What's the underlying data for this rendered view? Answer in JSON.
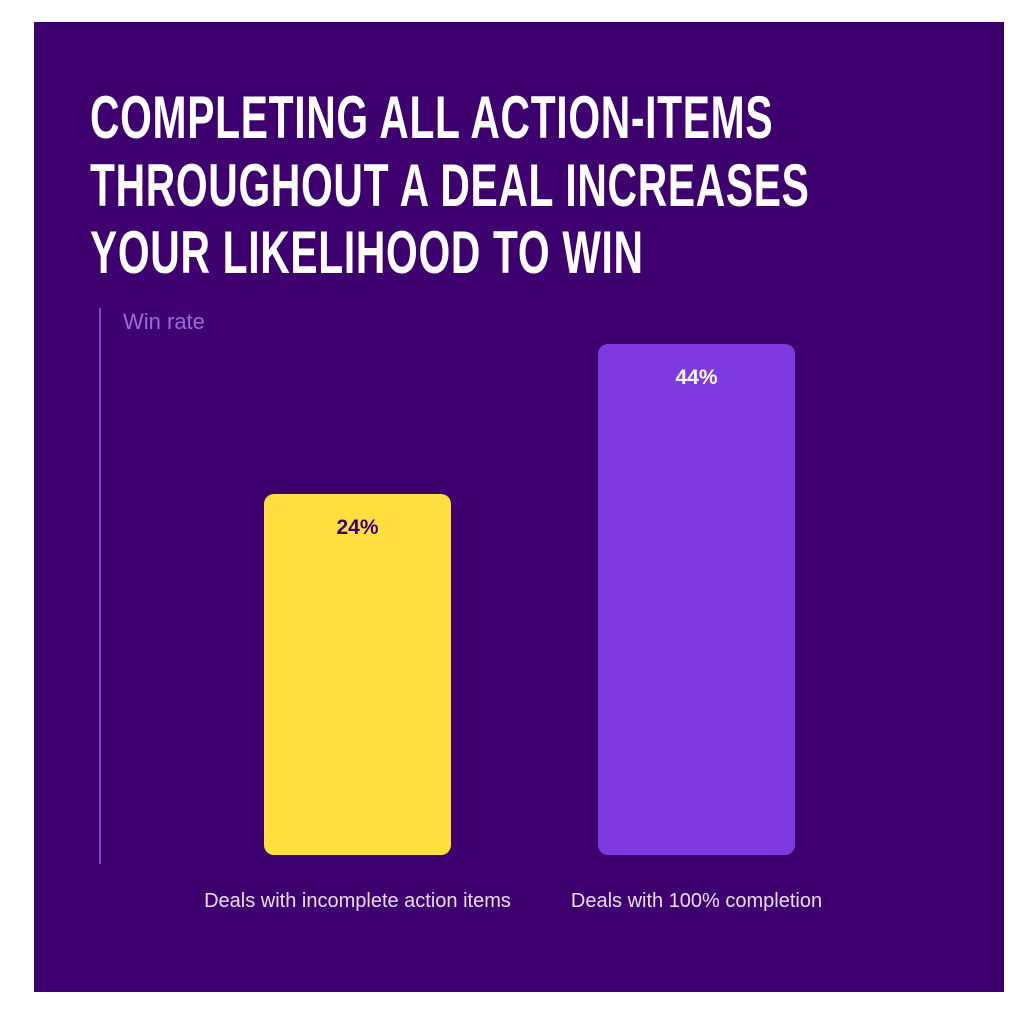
{
  "colors": {
    "background": "#3f006f",
    "bar_incomplete": "#ffdf3f",
    "bar_complete": "#7f3adf",
    "label_dark": "#3f006f",
    "label_light": "#ffffff"
  },
  "chart_data": {
    "type": "bar",
    "title": [
      "COMPLETING ALL ACTION-ITEMS",
      "THROUGHOUT A DEAL INCREASES",
      "YOUR LIKELIHOOD TO WIN"
    ],
    "ylabel": "Win rate",
    "xlabel": "",
    "categories": [
      "Deals with incomplete action items",
      "Deals with 100% completion"
    ],
    "values": [
      24,
      44
    ],
    "data_labels": [
      "24%",
      "44%"
    ],
    "unit": "%",
    "grid": false,
    "legend": "none"
  }
}
